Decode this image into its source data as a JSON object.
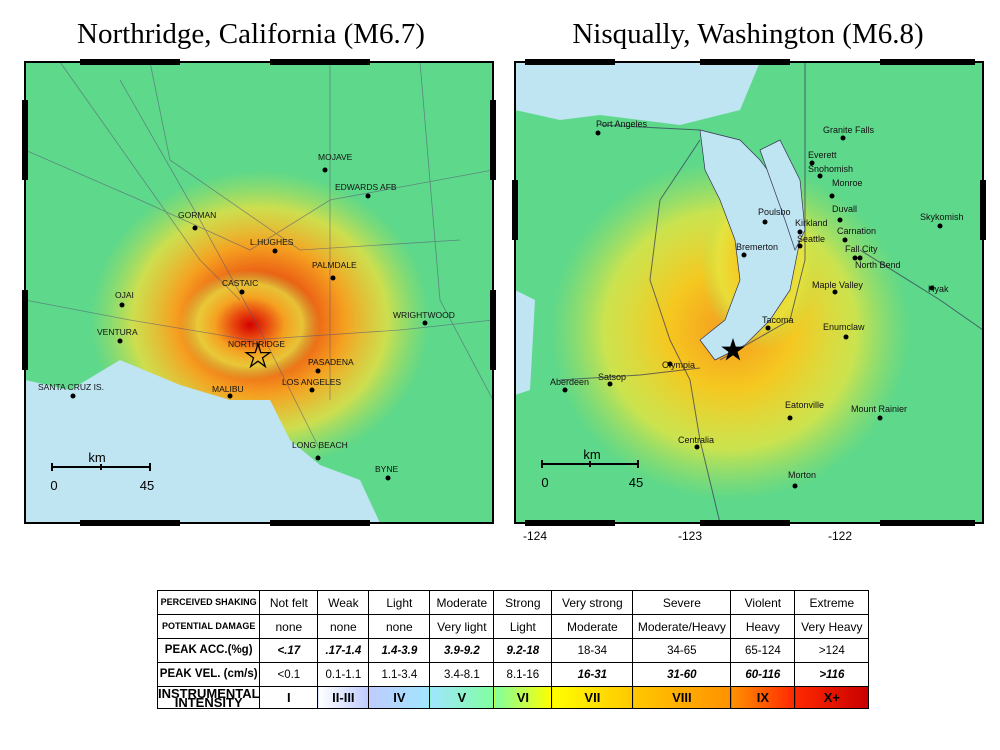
{
  "maps": [
    {
      "title": "Northridge, California (M6.7)",
      "places": [
        "MOJAVE",
        "EDWARDS AFB",
        "GORMAN",
        "L.HUGHES",
        "PALMDALE",
        "CASTAIC",
        "OJAI",
        "WRIGHTWOOD",
        "VENTURA",
        "NORTHRIDGE",
        "PASADENA",
        "SANTA CRUZ IS.",
        "MALIBU",
        "LOS ANGELES",
        "LONG BEACH",
        "BYNE"
      ],
      "scale": {
        "unit": "km",
        "ticks": [
          0,
          45
        ]
      }
    },
    {
      "title": "Nisqually, Washington (M6.8)",
      "places": [
        "Port Angeles",
        "Granite Falls",
        "Everett",
        "Snohomish",
        "Monroe",
        "Poulsbo",
        "Duvall",
        "Skykomish",
        "Kirkland",
        "Seattle",
        "Carnation",
        "Bremerton",
        "Fall City",
        "North Bend",
        "Maple Valley",
        "Hyak",
        "Tacoma",
        "Enumclaw",
        "Olympia",
        "Aberdeen",
        "Satsop",
        "Eatonville",
        "Mount Rainier",
        "Centralia",
        "Morton"
      ],
      "scale": {
        "unit": "km",
        "ticks": [
          0,
          45
        ]
      },
      "longitudes": [
        -124,
        -123,
        -122
      ]
    }
  ],
  "legend": {
    "rows": [
      [
        "PERCEIVED SHAKING",
        "Not felt",
        "Weak",
        "Light",
        "Moderate",
        "Strong",
        "Very strong",
        "Severe",
        "Violent",
        "Extreme"
      ],
      [
        "POTENTIAL DAMAGE",
        "none",
        "none",
        "none",
        "Very light",
        "Light",
        "Moderate",
        "Moderate/Heavy",
        "Heavy",
        "Very Heavy"
      ],
      [
        "PEAK ACC.(%g)",
        "<.17",
        ".17-1.4",
        "1.4-3.9",
        "3.9-9.2",
        "9.2-18",
        "18-34",
        "34-65",
        "65-124",
        ">124"
      ],
      [
        "PEAK VEL. (cm/s)",
        "<0.1",
        "0.1-1.1",
        "1.1-3.4",
        "3.4-8.1",
        "8.1-16",
        "16-31",
        "31-60",
        "60-116",
        ">116"
      ],
      [
        "INSTRUMENTAL INTENSITY",
        "I",
        "II-III",
        "IV",
        "V",
        "VI",
        "VII",
        "VIII",
        "IX",
        "X+"
      ]
    ]
  }
}
